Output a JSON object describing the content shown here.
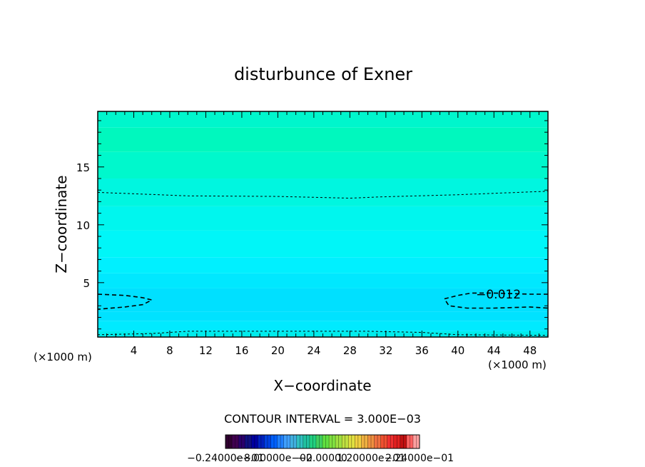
{
  "chart_data": {
    "type": "heatmap",
    "title": "disturbunce of Exner",
    "xlabel": "X−coordinate",
    "ylabel": "Z−coordinate",
    "x_unit_left": "(×1000 m)",
    "x_unit_right": "(×1000 m)",
    "xlim": [
      0,
      50
    ],
    "ylim": [
      0.3,
      19.8
    ],
    "x_ticks": [
      4,
      8,
      12,
      16,
      20,
      24,
      28,
      32,
      36,
      40,
      44,
      48
    ],
    "y_ticks": [
      5,
      10,
      15
    ],
    "bands": [
      {
        "z_bottom": 0.3,
        "z_top": 0.8,
        "color": "#00ecec"
      },
      {
        "z_bottom": 0.8,
        "z_top": 1.7,
        "color": "#00eaff"
      },
      {
        "z_bottom": 1.7,
        "z_top": 2.5,
        "color": "#00e2ff"
      },
      {
        "z_bottom": 2.5,
        "z_top": 4.5,
        "color": "#00e0ff"
      },
      {
        "z_bottom": 4.5,
        "z_top": 5.8,
        "color": "#00e8ff"
      },
      {
        "z_bottom": 5.8,
        "z_top": 7.2,
        "color": "#00f0ff"
      },
      {
        "z_bottom": 7.2,
        "z_top": 9.5,
        "color": "#00f6f8"
      },
      {
        "z_bottom": 9.5,
        "z_top": 11.6,
        "color": "#00f6ee"
      },
      {
        "z_bottom": 11.6,
        "z_top": 14.0,
        "color": "#00f6e0"
      },
      {
        "z_bottom": 14.0,
        "z_top": 16.3,
        "color": "#00f8cc"
      },
      {
        "z_bottom": 16.3,
        "z_top": 18.4,
        "color": "#00f8be"
      },
      {
        "z_bottom": 18.4,
        "z_top": 19.8,
        "color": "#00f6cc"
      }
    ],
    "contours": [
      {
        "style": "thin-dashed",
        "points": [
          [
            0,
            12.8
          ],
          [
            10,
            12.5
          ],
          [
            20,
            12.45
          ],
          [
            28,
            12.3
          ],
          [
            31,
            12.4
          ],
          [
            40,
            12.6
          ],
          [
            50,
            12.9
          ]
        ]
      },
      {
        "style": "thin-dashed",
        "points": [
          [
            0,
            0.5
          ],
          [
            6,
            0.6
          ],
          [
            10,
            0.8
          ],
          [
            20,
            0.8
          ],
          [
            30,
            0.8
          ],
          [
            36,
            0.7
          ],
          [
            40,
            0.5
          ],
          [
            50,
            0.45
          ]
        ]
      },
      {
        "style": "bold-dashed",
        "points": [
          [
            0,
            4.0
          ],
          [
            3,
            3.9
          ],
          [
            5,
            3.7
          ],
          [
            6,
            3.5
          ],
          [
            5,
            3.1
          ],
          [
            3,
            2.9
          ],
          [
            0,
            2.7
          ]
        ]
      },
      {
        "style": "bold-dashed",
        "points": [
          [
            50,
            4.0
          ],
          [
            48,
            4.0
          ],
          [
            44,
            4.1
          ],
          [
            42,
            4.1
          ],
          [
            41.5,
            4.1
          ],
          [
            40,
            3.9
          ],
          [
            38.5,
            3.6
          ],
          [
            39,
            3.0
          ],
          [
            41,
            2.8
          ],
          [
            44,
            2.8
          ],
          [
            48,
            2.9
          ],
          [
            50,
            2.8
          ]
        ]
      }
    ],
    "contour_label": {
      "text": "−0.012",
      "x": 44.5,
      "z": 4.0
    },
    "contour_interval_text": "CONTOUR INTERVAL = 3.000E−03",
    "colorbar": {
      "labels": [
        "−0.24000e−01",
        "−8.00000e−02",
        "−0.00000",
        "1.20000e−01",
        "2.24000e−01"
      ],
      "colors": [
        "#300030",
        "#400050",
        "#2a006a",
        "#101080",
        "#0000a0",
        "#0020c0",
        "#0040e0",
        "#0060ff",
        "#2080ff",
        "#40a0ff",
        "#40b0e0",
        "#30c0c0",
        "#20c0a0",
        "#20d080",
        "#40d060",
        "#60e040",
        "#80e040",
        "#a0e040",
        "#c0e040",
        "#e0e040",
        "#f0d040",
        "#f0b040",
        "#f09040",
        "#f07040",
        "#f05030",
        "#f03030",
        "#e02020",
        "#c01010",
        "#ff6060",
        "#ffa0a0"
      ]
    }
  }
}
